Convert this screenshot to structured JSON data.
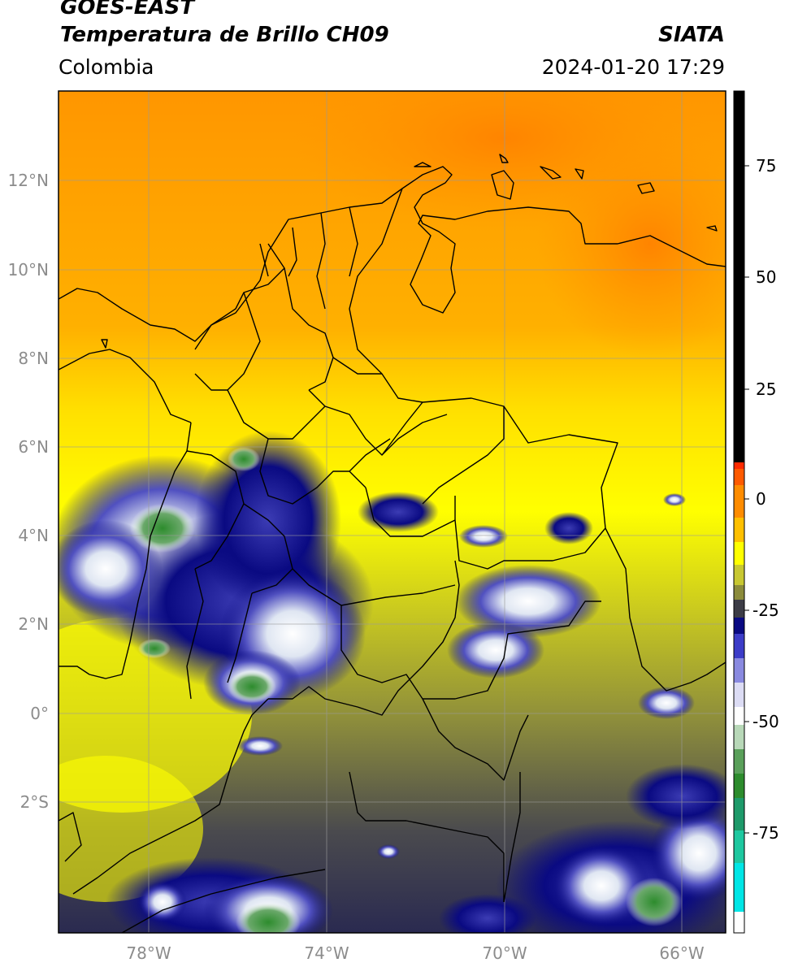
{
  "header": {
    "line1": "GOES-EAST",
    "line2": "Temperatura de Brillo CH09",
    "region": "Colombia",
    "agency": "SIATA",
    "datetime": "2024-01-20 17:29"
  },
  "axes": {
    "lat_labels": [
      "12°N",
      "10°N",
      "8°N",
      "6°N",
      "4°N",
      "2°N",
      "0°",
      "2°S"
    ],
    "lon_labels": [
      "78°W",
      "74°W",
      "70°W",
      "66°W"
    ]
  },
  "colorbar": {
    "labels": [
      "75",
      "50",
      "25",
      "0",
      "-25",
      "-50",
      "-75"
    ],
    "colors": {
      "black": "#000000",
      "red": "#ff2a00",
      "orange": "#ff8c00",
      "yellow": "#ffff00",
      "olive": "#8c8c3c",
      "gray": "#3c3c46",
      "navy": "#0a0a82",
      "blue": "#3c3cc8",
      "white": "#ffffff",
      "green": "#2d8c2d",
      "teal": "#1ec8a0",
      "cyan": "#00e6e6"
    }
  }
}
